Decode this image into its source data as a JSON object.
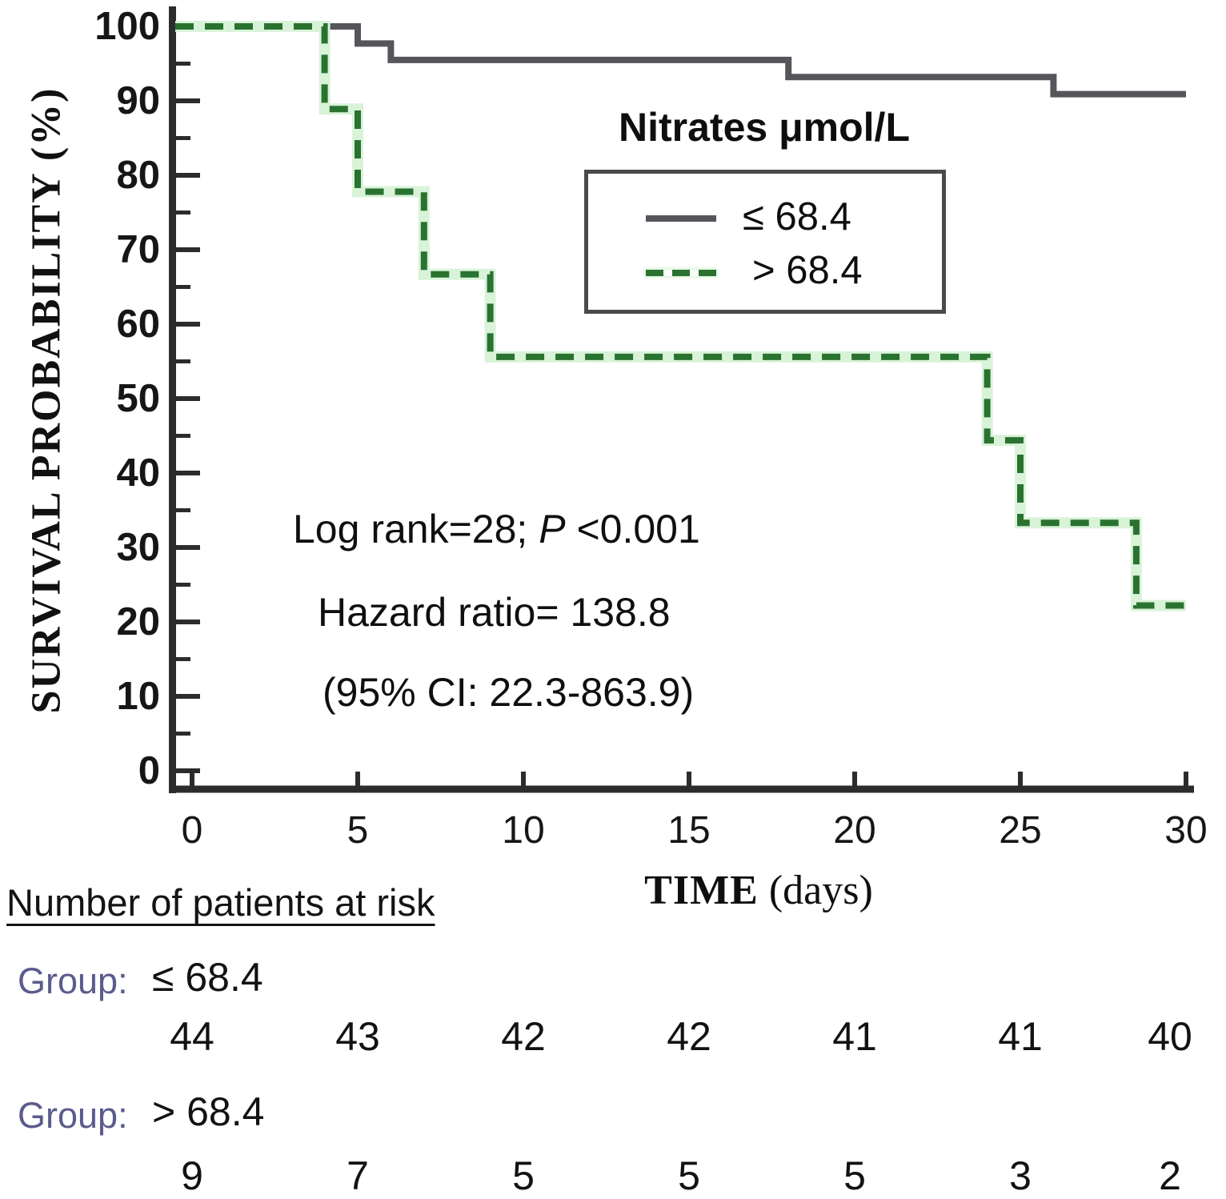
{
  "chart_data": {
    "type": "line",
    "subtype": "kaplan-meier-step",
    "xlabel_bold": "TIME",
    "xlabel_rest": " (days)",
    "ylabel": "SURVIVAL PROBABILITY (%)",
    "xlim": [
      0,
      30
    ],
    "ylim": [
      0,
      100
    ],
    "x_ticks": [
      0,
      5,
      10,
      15,
      20,
      25,
      30
    ],
    "y_ticks_major": [
      0,
      10,
      20,
      30,
      40,
      50,
      60,
      70,
      80,
      90,
      100
    ],
    "y_ticks_minor": [
      5,
      15,
      25,
      35,
      45,
      55,
      65,
      75,
      85,
      95
    ],
    "grid": false,
    "legend": {
      "title": "Nitrates μmol/L",
      "position": "upper-right",
      "entries": [
        {
          "label": "≤ 68.4",
          "style": "solid",
          "color": "#55565a"
        },
        {
          "label": "> 68.4",
          "style": "dashed",
          "color": "#2a7230"
        }
      ]
    },
    "series": [
      {
        "name": "≤ 68.4",
        "color": "#55565a",
        "dashed": false,
        "points": [
          [
            0,
            100
          ],
          [
            5,
            100
          ],
          [
            5,
            97.7
          ],
          [
            6,
            97.7
          ],
          [
            6,
            95.5
          ],
          [
            18,
            95.5
          ],
          [
            18,
            93.2
          ],
          [
            26,
            93.2
          ],
          [
            26,
            90.9
          ],
          [
            30,
            90.9
          ]
        ]
      },
      {
        "name": "> 68.4",
        "color": "#2a7230",
        "halo": "#d9f3d9",
        "dashed": true,
        "points": [
          [
            0,
            100
          ],
          [
            4,
            100
          ],
          [
            4,
            88.9
          ],
          [
            5,
            88.9
          ],
          [
            5,
            77.8
          ],
          [
            7,
            77.8
          ],
          [
            7,
            66.7
          ],
          [
            9,
            66.7
          ],
          [
            9,
            55.6
          ],
          [
            24,
            55.6
          ],
          [
            24,
            44.4
          ],
          [
            25,
            44.4
          ],
          [
            25,
            33.3
          ],
          [
            28.5,
            33.3
          ],
          [
            28.5,
            22.2
          ],
          [
            30,
            22.2
          ]
        ]
      }
    ],
    "annotations": {
      "line1_pre": "Log rank=28;  ",
      "line1_italic": "P",
      "line1_post": " <0.001",
      "line2": "Hazard ratio= 138.8",
      "line3": "(95% CI: 22.3-863.9)"
    },
    "at_risk": {
      "title": "Number of patients at risk",
      "rows": [
        {
          "prefix": "Group:",
          "label": "≤ 68.4",
          "values": [
            44,
            43,
            42,
            42,
            41,
            41,
            40
          ]
        },
        {
          "prefix": "Group:",
          "label": "> 68.4",
          "values": [
            9,
            7,
            5,
            5,
            5,
            3,
            2
          ]
        }
      ]
    },
    "colors": {
      "axis": "#2c2c2e",
      "text": "#151515",
      "group_label": "#5b5b8e"
    }
  }
}
